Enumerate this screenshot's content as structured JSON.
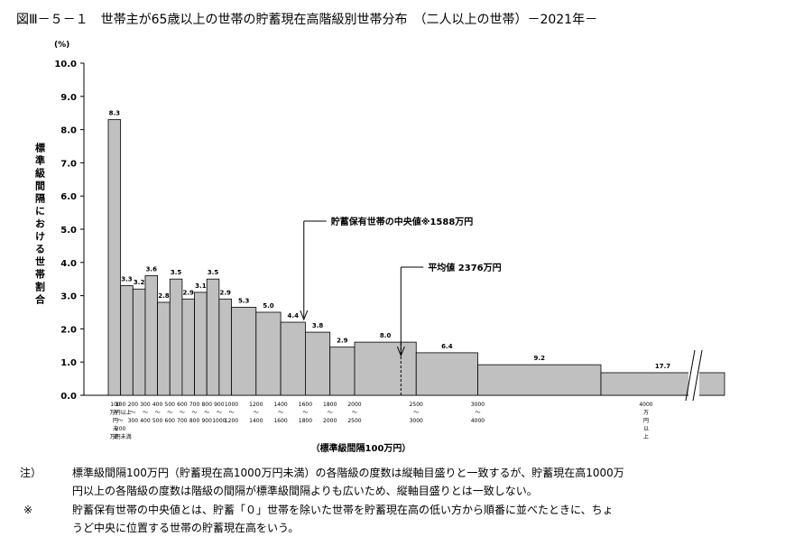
{
  "chart_data": {
    "type": "histogram",
    "title": "図Ⅲ－５－１　世帯主が65歳以上の世帯の貯蓄現在高階級別世帯分布　（二人以上の世帯）－2021年－",
    "y_unit": "(%)",
    "ylabel": "標準級間隔における世帯割合",
    "xlabel": "（標準級間隔100万円）",
    "bins": [
      0,
      100,
      200,
      300,
      400,
      500,
      600,
      700,
      800,
      900,
      1000,
      1200,
      1400,
      1600,
      1800,
      2000,
      2500,
      3000,
      4000,
      null
    ],
    "values": [
      8.3,
      3.3,
      3.2,
      3.6,
      2.8,
      3.5,
      2.9,
      3.1,
      3.5,
      2.9,
      2.65,
      2.5,
      2.2,
      1.9,
      1.45,
      1.6,
      1.28,
      0.92,
      0.68
    ],
    "frequency_labels": [
      "8.3",
      "3.3",
      "3.2",
      "3.6",
      "2.8",
      "3.5",
      "2.9",
      "3.1",
      "3.5",
      "2.9",
      "5.3",
      "5.0",
      "4.4",
      "3.8",
      "2.9",
      "8.0",
      "6.4",
      "9.2",
      "17.7"
    ],
    "categories": [
      [
        "100",
        "万",
        "円",
        "未",
        "満"
      ],
      [
        "100",
        "万円以上",
        "〜",
        "200",
        "万円未満"
      ],
      [
        "200",
        "〜",
        "300"
      ],
      [
        "300",
        "〜",
        "400"
      ],
      [
        "400",
        "〜",
        "500"
      ],
      [
        "500",
        "〜",
        "600"
      ],
      [
        "600",
        "〜",
        "700"
      ],
      [
        "700",
        "〜",
        "800"
      ],
      [
        "800",
        "〜",
        "900"
      ],
      [
        "900",
        "〜",
        "1000"
      ],
      [
        "1000",
        "〜",
        "1200"
      ],
      [
        "1200",
        "〜",
        "1400"
      ],
      [
        "1400",
        "〜",
        "1600"
      ],
      [
        "1600",
        "〜",
        "1800"
      ],
      [
        "1800",
        "〜",
        "2000"
      ],
      [
        "2000",
        "〜",
        "2500"
      ],
      [
        "2500",
        "〜",
        "3000"
      ],
      [
        "3000",
        "〜",
        "4000"
      ],
      [
        "4000",
        "万",
        "円",
        "以",
        "上"
      ]
    ],
    "color": "#c0c0c0",
    "ylim": [
      0,
      10
    ],
    "yticks": [
      {
        "value": 0,
        "label": "0.0"
      },
      {
        "value": 1,
        "label": "1.0"
      },
      {
        "value": 2,
        "label": "2.0"
      },
      {
        "value": 3,
        "label": "3.0"
      },
      {
        "value": 4,
        "label": "4.0"
      },
      {
        "value": 5,
        "label": "5.0"
      },
      {
        "value": 6,
        "label": "6.0"
      },
      {
        "value": 7,
        "label": "7.0"
      },
      {
        "value": 8,
        "label": "8.0"
      },
      {
        "value": 9,
        "label": "9.0"
      },
      {
        "value": 10,
        "label": "10.0"
      }
    ],
    "annotations": [
      {
        "text": "貯蓄保有世帯の中央値※1588万円",
        "x": 1588
      },
      {
        "text": "平均値 2376万円",
        "x": 2376
      }
    ]
  },
  "notes": [
    {
      "marker": "注）",
      "lines": [
        "標準級間隔100万円（貯蓄現在高1000万円未満）の各階級の度数は縦軸目盛りと一致するが、貯蓄現在高1000万",
        "円以上の各階級の度数は階級の間隔が標準級間隔よりも広いため、縦軸目盛りとは一致しない。"
      ]
    },
    {
      "marker": "※",
      "lines": [
        "貯蓄保有世帯の中央値とは、貯蓄「０」世帯を除いた世帯を貯蓄現在高の低い方から順番に並べたときに、ちょ",
        "うど中央に位置する世帯の貯蓄現在高をいう。"
      ]
    }
  ]
}
